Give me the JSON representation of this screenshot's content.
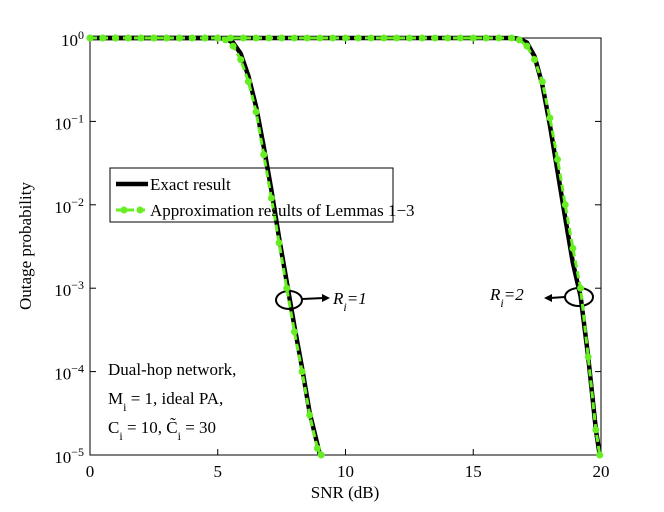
{
  "chart_data": {
    "type": "line",
    "xlabel": "SNR (dB)",
    "ylabel": "Outage probability",
    "xlim": [
      0,
      20
    ],
    "xticks": [
      0,
      5,
      10,
      15,
      20
    ],
    "ylim": [
      1e-05,
      1
    ],
    "yscale": "log",
    "yticks": [
      {
        "value": 1,
        "label": "10^{0}"
      },
      {
        "value": 0.1,
        "label": "10^{−1}"
      },
      {
        "value": 0.01,
        "label": "10^{−2}"
      },
      {
        "value": 0.001,
        "label": "10^{−3}"
      },
      {
        "value": 0.0001,
        "label": "10^{−4}"
      },
      {
        "value": 1e-05,
        "label": "10^{−5}"
      }
    ],
    "series": [
      {
        "name": "Exact result",
        "color": "#000000",
        "style": "solid",
        "markers": false,
        "curves": [
          {
            "x": [
              0,
              5.0,
              5.3,
              5.6,
              5.9,
              6.2,
              6.5,
              6.8,
              7.1,
              7.4,
              7.7,
              8.0,
              8.3,
              8.6,
              9.0
            ],
            "values": [
              1,
              1,
              0.98,
              0.88,
              0.65,
              0.35,
              0.15,
              0.05,
              0.015,
              0.004,
              0.0012,
              0.00035,
              0.00011,
              3.2e-05,
              1e-05
            ]
          },
          {
            "x": [
              0,
              16.5,
              16.8,
              17.1,
              17.4,
              17.7,
              18.0,
              18.3,
              18.6,
              18.9,
              19.2,
              19.5,
              19.8,
              19.95
            ],
            "values": [
              1,
              1,
              0.98,
              0.88,
              0.6,
              0.28,
              0.09,
              0.025,
              0.007,
              0.002,
              0.0008,
              0.00015,
              2e-05,
              1e-05
            ]
          }
        ]
      },
      {
        "name": "Approximation results of Lemmas 1−3",
        "color": "#66ee22",
        "style": "dashed",
        "markers": true,
        "curves": [
          {
            "x": [
              0,
              0.5,
              1,
              1.5,
              2,
              2.5,
              3,
              3.5,
              4,
              4.5,
              5,
              5.3,
              5.6,
              5.9,
              6.2,
              6.5,
              6.8,
              7.1,
              7.4,
              7.7,
              8.0,
              8.3,
              8.6,
              8.9,
              9.05
            ],
            "values": [
              1,
              1,
              1,
              1,
              1,
              1,
              1,
              1,
              1,
              1,
              1,
              0.95,
              0.8,
              0.55,
              0.3,
              0.13,
              0.04,
              0.012,
              0.0035,
              0.001,
              0.0003,
              0.0001,
              3e-05,
              1.2e-05,
              1e-05
            ]
          },
          {
            "x": [
              0,
              0.5,
              1,
              1.5,
              2,
              2.5,
              3,
              3.5,
              4,
              4.5,
              5,
              5.5,
              6,
              6.5,
              7,
              7.5,
              8,
              8.5,
              9,
              9.5,
              10,
              10.5,
              11,
              11.5,
              12,
              12.5,
              13,
              13.5,
              14,
              14.5,
              15,
              15.5,
              16,
              16.5,
              16.8,
              17.1,
              17.4,
              17.7,
              18.0,
              18.3,
              18.6,
              18.9,
              19.2,
              19.5,
              19.8,
              19.95
            ],
            "values": [
              1,
              1,
              1,
              1,
              1,
              1,
              1,
              1,
              1,
              1,
              1,
              1,
              1,
              1,
              1,
              1,
              1,
              1,
              1,
              1,
              1,
              1,
              1,
              1,
              1,
              1,
              1,
              1,
              1,
              1,
              1,
              1,
              1,
              1,
              0.95,
              0.8,
              0.55,
              0.3,
              0.11,
              0.035,
              0.01,
              0.003,
              0.001,
              0.00015,
              2e-05,
              1e-05
            ]
          }
        ]
      }
    ],
    "annotations": [
      "R_{i}=1",
      "R_{i}=2"
    ],
    "note": [
      "Dual-hop network,",
      "M_{i} = 1, ideal PA,",
      "C_{i} = 10, C̃_{i} = 30"
    ]
  }
}
